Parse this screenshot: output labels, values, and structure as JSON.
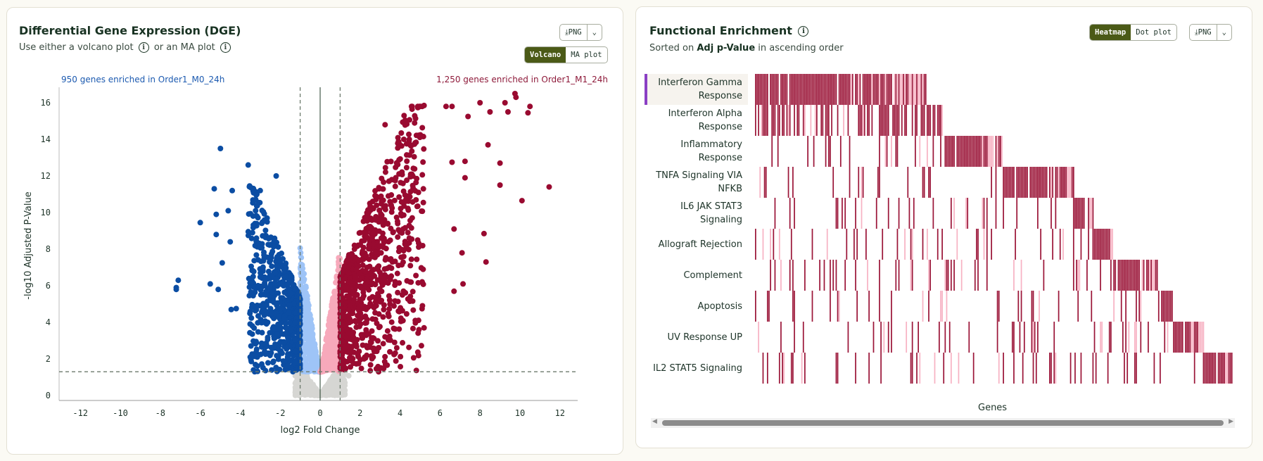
{
  "dge": {
    "title": "Differential Gene Expression (DGE)",
    "subtitle_part1": "Use either a volcano plot",
    "subtitle_part2": "or an MA plot",
    "info_icon": "i",
    "png_label": "PNG",
    "download_icon": "download-icon",
    "dropdown_icon": "chevron-down-icon",
    "toggle": [
      "Volcano",
      "MA plot"
    ],
    "toggle_selected": "Volcano",
    "left_note": "950 genes enriched in Order1_M0_24h",
    "right_note": "1,250 genes enriched in Order1_M1_24h"
  },
  "enrichment": {
    "title": "Functional Enrichment",
    "sorted_prefix": "Sorted on",
    "sorted_key": "Adj p-Value",
    "sorted_suffix": "in ascending order",
    "toggle": [
      "Heatmap",
      "Dot plot"
    ],
    "toggle_selected": "Heatmap",
    "png_label": "PNG",
    "hovered_row": "Interferon Gamma Response"
  },
  "colors": {
    "down_sig": "#0b4da3",
    "down_ns": "#9ec4f7",
    "up_sig": "#990a30",
    "up_ns": "#f7a9bb",
    "not_sig": "#d6d6d3",
    "accent": "#4b5a17",
    "hover_bar": "#8a3fc4",
    "heat_dark": "#9b1538",
    "heat_light": "#f7b2c3"
  },
  "chart_data": [
    {
      "type": "scatter",
      "subtype": "volcano",
      "xlabel": "log2 Fold Change",
      "ylabel": "-log10 Adjusted P-Value",
      "xlim": [
        -13,
        13
      ],
      "ylim": [
        0,
        16.5
      ],
      "xticks": [
        "-12",
        "-10",
        "-8",
        "-6",
        "-4",
        "-2",
        "0",
        "2",
        "4",
        "6",
        "8",
        "10",
        "12"
      ],
      "yticks": [
        "0",
        "2",
        "4",
        "6",
        "8",
        "10",
        "12",
        "14",
        "16"
      ],
      "fold_change_threshold": 1,
      "pvalue_threshold_line": 1.3,
      "counts": {
        "down_significant": 950,
        "up_significant": 1250
      },
      "outliers": {
        "down": [
          [
            -4.99,
            13.5
          ],
          [
            -3.6,
            12.6
          ],
          [
            -5.3,
            11.3
          ],
          [
            -4.4,
            11.2
          ],
          [
            -3.0,
            11.2
          ],
          [
            -2.2,
            12.0
          ],
          [
            -6.0,
            9.45
          ],
          [
            -5.2,
            9.9
          ],
          [
            -4.6,
            10.1
          ],
          [
            -5.2,
            8.8
          ],
          [
            -4.5,
            8.4
          ],
          [
            -7.1,
            6.3
          ],
          [
            -7.2,
            5.8
          ],
          [
            -7.2,
            5.9
          ],
          [
            -5.5,
            6.1
          ],
          [
            -5.1,
            5.8
          ],
          [
            -4.9,
            7.25
          ],
          [
            -4.45,
            4.7
          ],
          [
            -4.2,
            4.75
          ],
          [
            -3.1,
            4.35
          ]
        ],
        "up": [
          [
            11.46,
            11.4
          ],
          [
            10.1,
            10.65
          ],
          [
            10.5,
            15.8
          ],
          [
            9.75,
            16.5
          ],
          [
            9.8,
            16.3
          ],
          [
            9.25,
            16.0
          ],
          [
            9.4,
            15.5
          ],
          [
            10.4,
            15.45
          ],
          [
            8.0,
            16.0
          ],
          [
            8.5,
            15.5
          ],
          [
            8.4,
            13.7
          ],
          [
            9.0,
            12.7
          ],
          [
            9.0,
            11.5
          ],
          [
            8.2,
            8.85
          ],
          [
            7.1,
            7.8
          ],
          [
            8.3,
            7.3
          ],
          [
            7.15,
            6.1
          ],
          [
            6.7,
            5.7
          ],
          [
            5.2,
            3.7
          ],
          [
            7.25,
            12.8
          ],
          [
            7.25,
            11.9
          ],
          [
            6.7,
            9.1
          ],
          [
            6.6,
            12.75
          ],
          [
            6.3,
            15.8
          ],
          [
            6.6,
            15.8
          ],
          [
            7.4,
            15.25
          ],
          [
            5.2,
            15.85
          ],
          [
            4.6,
            15.65
          ],
          [
            4.2,
            15.3
          ],
          [
            3.25,
            14.8
          ]
        ],
        "not_significant": [
          [
            1.43,
            1.08
          ],
          [
            1.14,
            0.45
          ]
        ]
      }
    },
    {
      "type": "heatmap",
      "xlabel": "Genes",
      "rows": [
        "Interferon Gamma Response",
        "Interferon Alpha Response",
        "Inflammatory Response",
        "TNFA Signaling VIA NFKB",
        "IL6 JAK STAT3 Signaling",
        "Allograft Rejection",
        "Complement",
        "Apoptosis",
        "UV Response UP",
        "IL2 STAT5 Signaling"
      ],
      "row_labels": [
        [
          "Interferon Gamma",
          "Response"
        ],
        [
          "Interferon Alpha",
          "Response"
        ],
        [
          "Inflammatory",
          "Response"
        ],
        [
          "TNFA Signaling VIA",
          "NFKB"
        ],
        [
          "IL6 JAK STAT3",
          "Signaling"
        ],
        [
          "Allograft Rejection"
        ],
        [
          "Complement"
        ],
        [
          "Apoptosis"
        ],
        [
          "UV Response UP"
        ],
        [
          "IL2 STAT5 Signaling"
        ]
      ],
      "new_gene_block_fraction": [
        [
          0,
          0.36
        ],
        [
          0.36,
          0.397
        ],
        [
          0.397,
          0.52
        ],
        [
          0.52,
          0.67
        ],
        [
          0.67,
          0.71
        ],
        [
          0.71,
          0.75
        ],
        [
          0.75,
          0.845
        ],
        [
          0.845,
          0.875
        ],
        [
          0.875,
          0.94
        ],
        [
          0.94,
          1.0
        ]
      ]
    }
  ]
}
